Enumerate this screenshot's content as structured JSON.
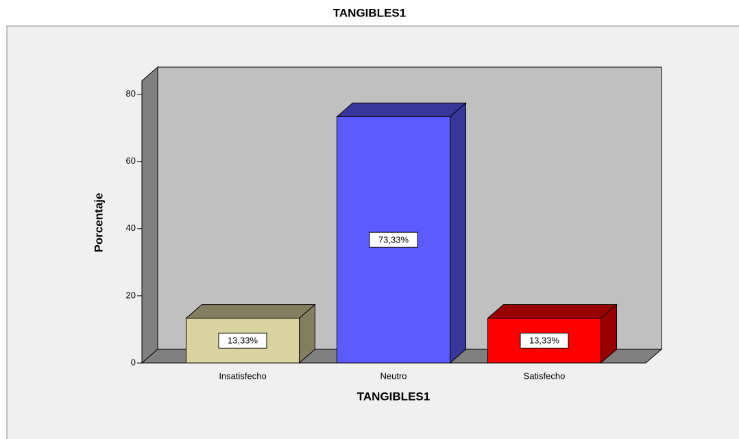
{
  "chart_data": {
    "type": "bar3d",
    "title": "TANGIBLES1",
    "x_label": "TANGIBLES1",
    "y_label": "Porcentaje",
    "categories": [
      "Insatisfecho",
      "Neutro",
      "Satisfecho"
    ],
    "values": [
      13.33,
      73.33,
      13.33
    ],
    "value_labels": [
      "13,33%",
      "73,33%",
      "13,33%"
    ],
    "colors": [
      "#d9d3a0",
      "#5b5bff",
      "#ff0000"
    ],
    "ylim": [
      0,
      84
    ],
    "yticks": [
      0,
      20,
      40,
      60,
      80
    ]
  }
}
